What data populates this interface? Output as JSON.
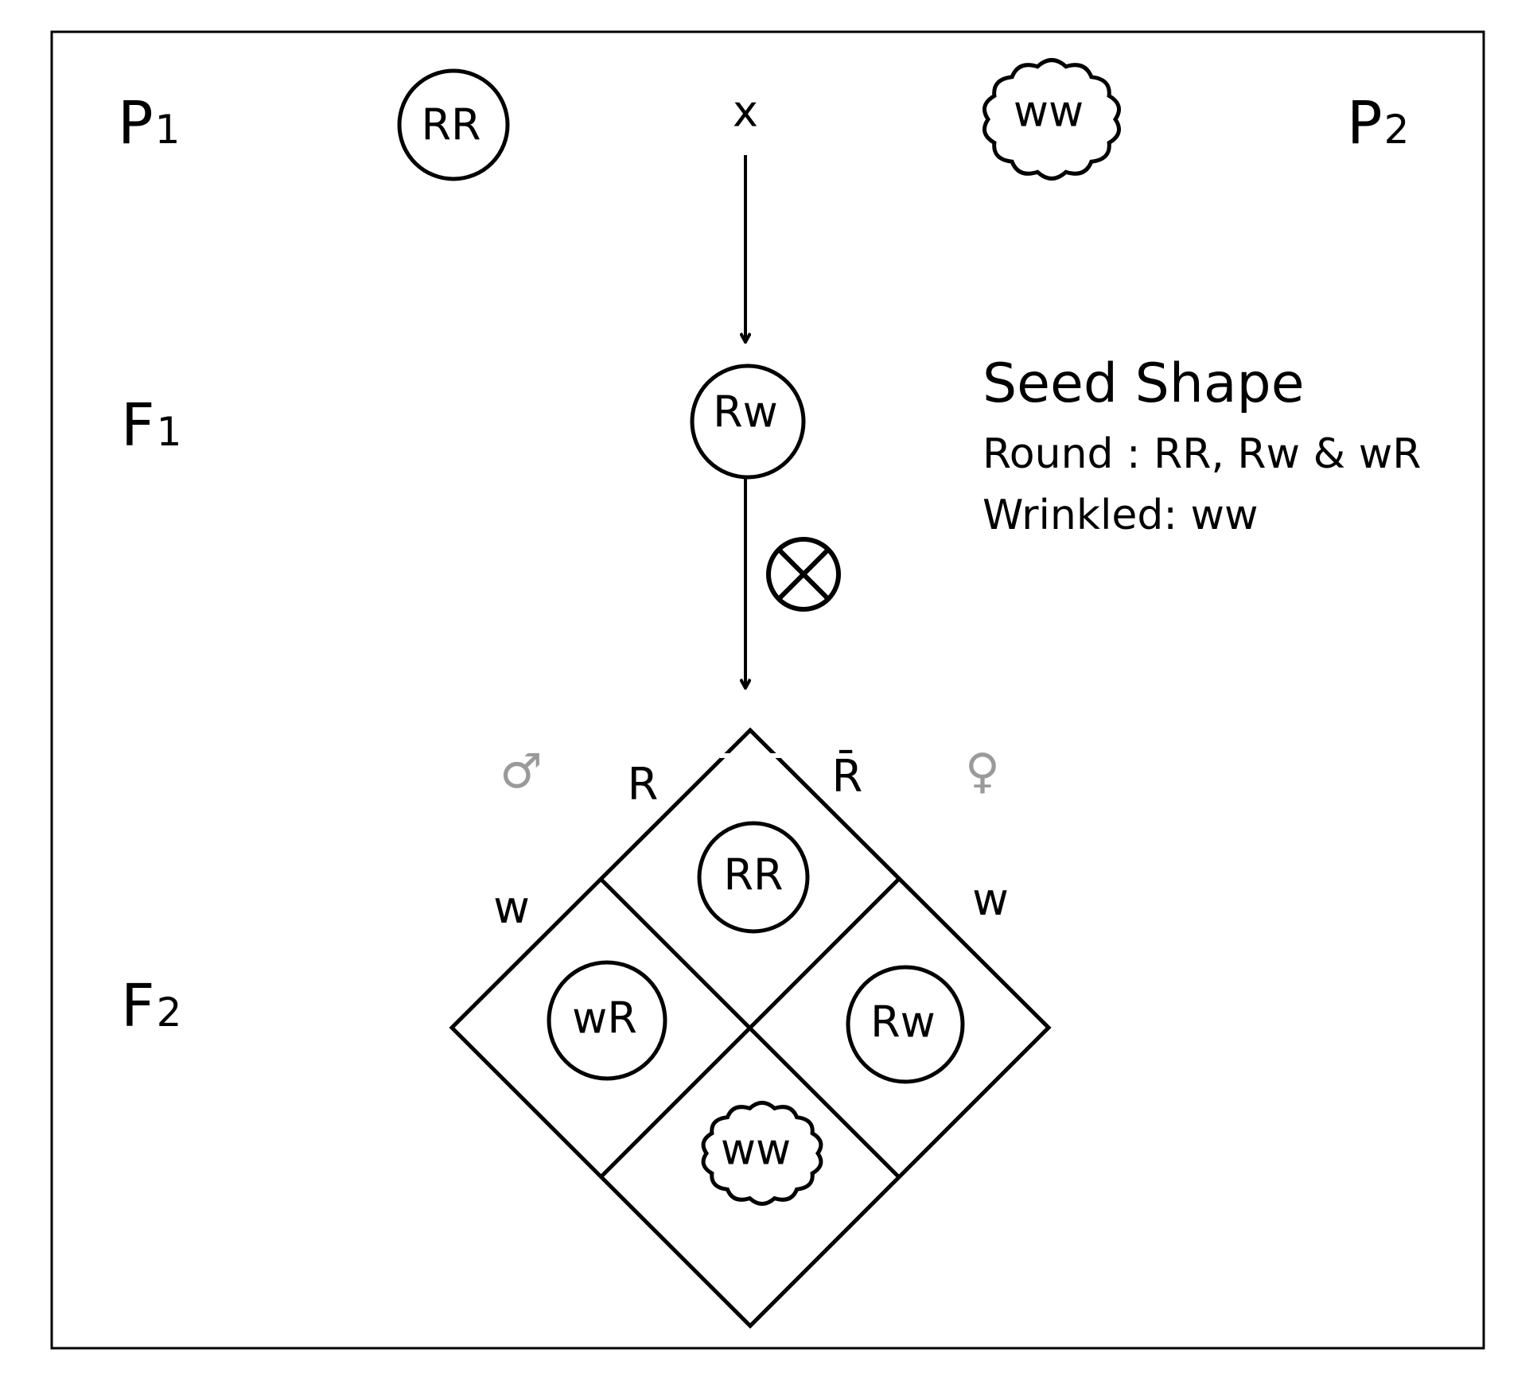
{
  "generations": {
    "p1": {
      "letter": "P",
      "subscript": "1"
    },
    "p2": {
      "letter": "P",
      "subscript": "2"
    },
    "f1": {
      "letter": "F",
      "subscript": "1"
    },
    "f2": {
      "letter": "F",
      "subscript": "2"
    }
  },
  "parents": {
    "p1_genotype": "RR",
    "cross_symbol": "x",
    "p2_genotype": "ww"
  },
  "f1": {
    "genotype": "Rw"
  },
  "gametes": {
    "male_symbol": "♂",
    "female_symbol": "♀",
    "male_top": "R",
    "male_bottom": "w",
    "female_top": "R̄",
    "female_bottom": "w"
  },
  "punnett": {
    "top": "RR",
    "left": "wR",
    "right": "Rw",
    "bottom": "ww"
  },
  "legend": {
    "title": "Seed Shape",
    "line1": "Round : RR, Rw & wR",
    "line2": "Wrinkled: ww"
  },
  "colors": {
    "stroke": "#000000",
    "sex_symbols": "#9a9a9a"
  }
}
